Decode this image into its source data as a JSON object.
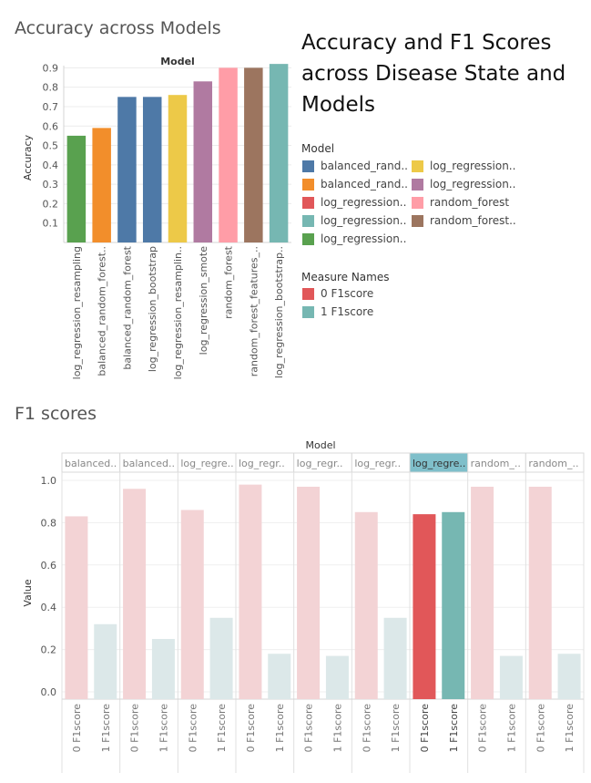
{
  "page": {
    "dashboard_title": "Accuracy and F1 Scores across Disease State and Models"
  },
  "chart_data": [
    {
      "type": "bar",
      "title": "Accuracy across Models",
      "header": "Model",
      "ylabel": "Accuracy",
      "xlabel": "",
      "ylim": [
        0,
        0.93
      ],
      "yticks": [
        0.1,
        0.2,
        0.3,
        0.4,
        0.5,
        0.6,
        0.7,
        0.8,
        0.9
      ],
      "categories": [
        "log_regression_resampling",
        "balanced_random_forest..",
        "balanced_random_forest",
        "log_regression_bootstrap",
        "log_regression_resamplin..",
        "log_regression_smote",
        "random_forest",
        "random_forest_features_..",
        "log_regression_bootstrap.."
      ],
      "values": [
        0.55,
        0.59,
        0.75,
        0.75,
        0.76,
        0.83,
        0.9,
        0.9,
        0.92
      ],
      "colors": [
        "#59a14f",
        "#f28e2b",
        "#4e79a7",
        "#4e79a7",
        "#edc948",
        "#b07aa1",
        "#ff9da7",
        "#9c755f",
        "#76b7b2"
      ]
    },
    {
      "type": "bar",
      "title": "F1 scores",
      "header": "Model",
      "ylabel": "Value",
      "xlabel": "",
      "ylim": [
        -0.04,
        1.04
      ],
      "yticks": [
        "0.0",
        "0.2",
        "0.4",
        "0.6",
        "0.8",
        "1.0"
      ],
      "panels": [
        "balanced..",
        "balanced..",
        "log_regre..",
        "log_regr..",
        "log_regr..",
        "log_regr..",
        "log_regre..",
        "random_..",
        "random_.."
      ],
      "highlighted_panel": 6,
      "measures": [
        "0 F1score",
        "1 F1score"
      ],
      "values": [
        [
          0.83,
          0.32
        ],
        [
          0.96,
          0.25
        ],
        [
          0.86,
          0.35
        ],
        [
          0.98,
          0.18
        ],
        [
          0.97,
          0.17
        ],
        [
          0.85,
          0.35
        ],
        [
          0.84,
          0.85
        ],
        [
          0.97,
          0.17
        ],
        [
          0.97,
          0.18
        ]
      ],
      "colors": {
        "0 F1score": "#e15759",
        "1 F1score": "#76b7b2",
        "0_dim": "#f3d3d5",
        "1_dim": "#dce8e9",
        "highlight_header": "#7fbfca"
      }
    }
  ],
  "legend_model": {
    "title": "Model",
    "items": [
      {
        "label": "balanced_rand..",
        "color": "#4e79a7"
      },
      {
        "label": "balanced_rand..",
        "color": "#f28e2b"
      },
      {
        "label": "log_regression..",
        "color": "#e15759"
      },
      {
        "label": "log_regression..",
        "color": "#76b7b2"
      },
      {
        "label": "log_regression..",
        "color": "#59a14f"
      },
      {
        "label": "log_regression..",
        "color": "#edc948"
      },
      {
        "label": "log_regression..",
        "color": "#b07aa1"
      },
      {
        "label": "random_forest",
        "color": "#ff9da7"
      },
      {
        "label": "random_forest..",
        "color": "#9c755f"
      }
    ]
  },
  "legend_measure": {
    "title": "Measure Names",
    "items": [
      {
        "label": "0 F1score",
        "color": "#e15759"
      },
      {
        "label": "1 F1score",
        "color": "#76b7b2"
      }
    ]
  }
}
